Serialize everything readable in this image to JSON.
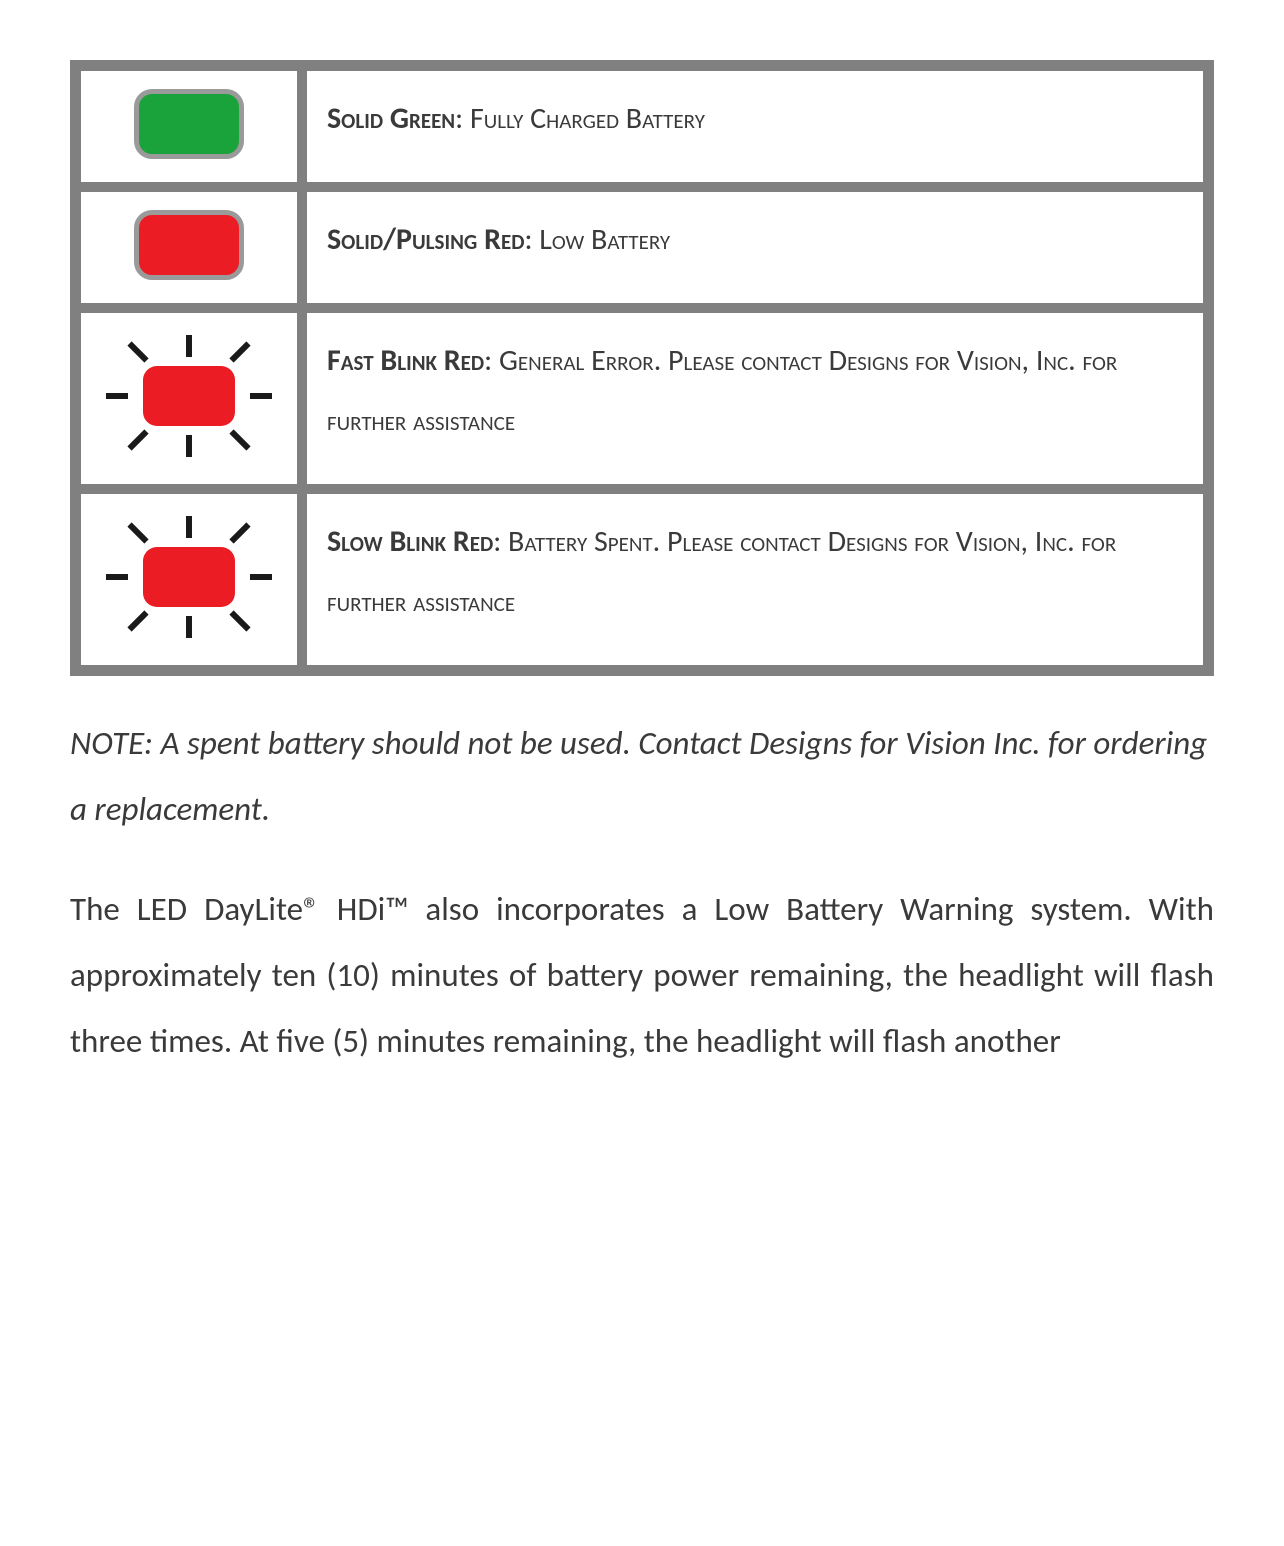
{
  "colors": {
    "green": "#1aa33a",
    "red": "#ec1c24",
    "led_border": "#9a9a9a",
    "table_border": "#808080",
    "ray": "#1a1a1a",
    "text": "#3a3a3a",
    "background": "#ffffff"
  },
  "table": {
    "rows": [
      {
        "icon": {
          "type": "solid",
          "color_key": "green"
        },
        "label": "Solid Green",
        "desc": ": Fully Charged Battery"
      },
      {
        "icon": {
          "type": "solid",
          "color_key": "red"
        },
        "label": "Solid/Pulsing Red",
        "desc": ": Low Battery"
      },
      {
        "icon": {
          "type": "blink",
          "color_key": "red"
        },
        "label": "Fast Blink Red",
        "desc": ": General Error. Please contact Designs for Vision, Inc. for further assistance"
      },
      {
        "icon": {
          "type": "blink",
          "color_key": "red"
        },
        "label": "Slow Blink Red",
        "desc": ": Battery Spent. Please contact Designs for Vision, Inc. for further assistance"
      }
    ]
  },
  "note_text": "NOTE: A spent battery should not be used. Contact Designs for Vision Inc. for ordering a replacement.",
  "body_text": "The LED DayLite® HDi™ also incorporates a Low Battery Warning system. With approximately ten (10) minutes of battery power remaining, the headlight will flash three times. At five (5) minutes remaining, the headlight will flash another"
}
